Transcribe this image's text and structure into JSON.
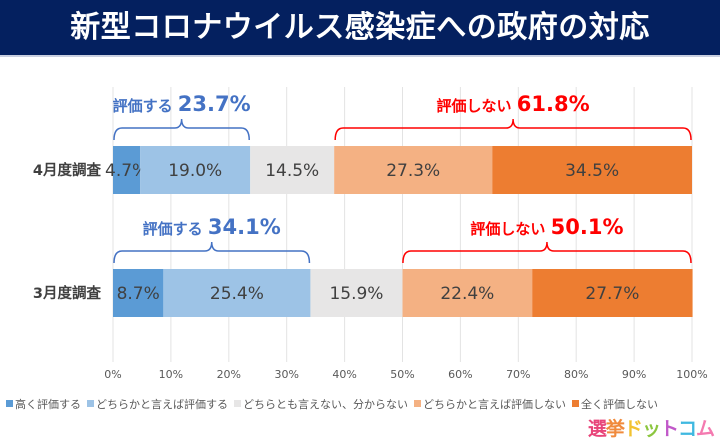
{
  "header": {
    "title": "新型コロナウイルス感染症への政府の対応"
  },
  "logo": {
    "chars": [
      {
        "ch": "選",
        "color": "#e8457a"
      },
      {
        "ch": "挙",
        "color": "#f08a3c"
      },
      {
        "ch": "ド",
        "color": "#f2c230"
      },
      {
        "ch": "ッ",
        "color": "#8cc63f"
      },
      {
        "ch": "ト",
        "color": "#c158c9"
      },
      {
        "ch": "コ",
        "color": "#3fb8e0"
      },
      {
        "ch": "ム",
        "color": "#f47ab0"
      }
    ]
  },
  "chart_data": {
    "type": "bar",
    "orientation": "horizontal-stacked-100",
    "title": "新型コロナウイルス感染症への政府の対応",
    "categories": [
      "4月度調査",
      "3月度調査"
    ],
    "series": [
      {
        "name": "高く評価する",
        "color": "#5b9bd5",
        "values": [
          4.7,
          8.7
        ]
      },
      {
        "name": "どちらかと言えば評価する",
        "color": "#9dc3e6",
        "values": [
          19.0,
          25.4
        ]
      },
      {
        "name": "どちらとも言えない、分からない",
        "color": "#e7e6e6",
        "values": [
          14.5,
          15.9
        ]
      },
      {
        "name": "どちらかと言えば評価しない",
        "color": "#f4b183",
        "values": [
          27.3,
          22.4
        ]
      },
      {
        "name": "全く評価しない",
        "color": "#ed7d31",
        "values": [
          34.5,
          27.7
        ]
      }
    ],
    "data_labels": [
      [
        "4.7%",
        "19.0%",
        "14.5%",
        "27.3%",
        "34.5%"
      ],
      [
        "8.7%",
        "25.4%",
        "15.9%",
        "22.4%",
        "27.7%"
      ]
    ],
    "annotations": [
      {
        "row": 0,
        "group": "positive",
        "text": "評価する",
        "value_text": "23.7%",
        "from": 0,
        "to": 23.7,
        "color": "#4472c4"
      },
      {
        "row": 0,
        "group": "negative",
        "text": "評価しない",
        "value_text": "61.8%",
        "from": 38.2,
        "to": 100,
        "color": "#ff0000"
      },
      {
        "row": 1,
        "group": "positive",
        "text": "評価する",
        "value_text": "34.1%",
        "from": 0,
        "to": 34.1,
        "color": "#4472c4"
      },
      {
        "row": 1,
        "group": "negative",
        "text": "評価しない",
        "value_text": "50.1%",
        "from": 49.9,
        "to": 100,
        "color": "#ff0000"
      }
    ],
    "xaxis": {
      "ticks": [
        "0%",
        "10%",
        "20%",
        "30%",
        "40%",
        "50%",
        "60%",
        "70%",
        "80%",
        "90%",
        "100%"
      ],
      "range": [
        0,
        100
      ]
    },
    "xlabel": "",
    "ylabel": "",
    "grid": true,
    "legend": "bottom"
  }
}
